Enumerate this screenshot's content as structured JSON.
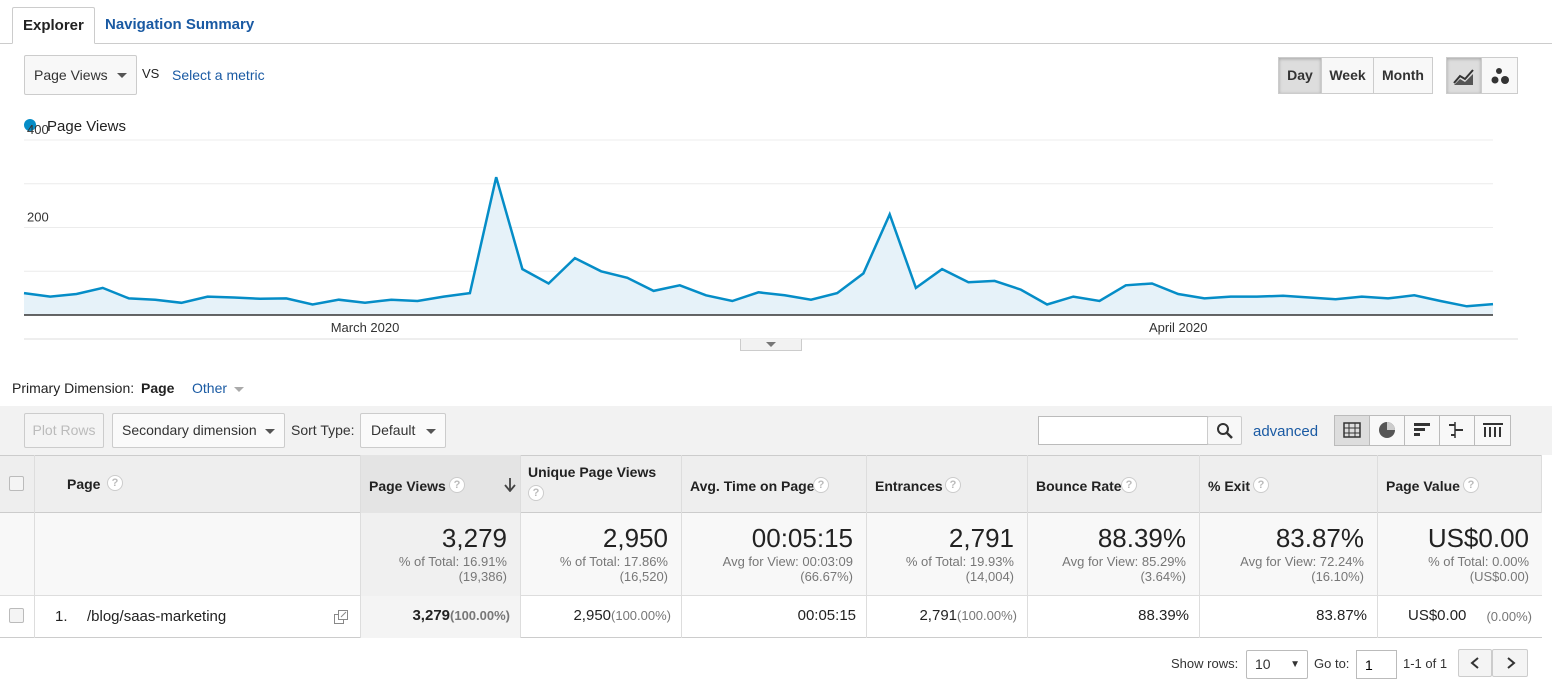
{
  "tabs": [
    {
      "label": "Explorer"
    },
    {
      "label": "Navigation Summary"
    }
  ],
  "metric": {
    "selected": "Page Views",
    "vs": "VS",
    "select_link": "Select a metric"
  },
  "period": {
    "day": "Day",
    "week": "Week",
    "month": "Month",
    "selected": "Day"
  },
  "chart_data": {
    "type": "area",
    "legend": "Page Views",
    "series_color": "#058dc7",
    "y_ticks": [
      "400",
      "200"
    ],
    "ylim": [
      0,
      400
    ],
    "x_labels": [
      {
        "label": "March 2020",
        "index": 13
      },
      {
        "label": "April 2020",
        "index": 44
      }
    ],
    "series": [
      {
        "name": "Page Views",
        "values": [
          50,
          42,
          48,
          62,
          38,
          35,
          28,
          42,
          40,
          37,
          38,
          24,
          35,
          28,
          35,
          32,
          42,
          50,
          315,
          105,
          72,
          130,
          100,
          85,
          55,
          68,
          45,
          32,
          52,
          45,
          35,
          50,
          95,
          230,
          62,
          105,
          75,
          78,
          58,
          24,
          42,
          32,
          68,
          72,
          48,
          38,
          42,
          42,
          44,
          40,
          36,
          42,
          38,
          45,
          32,
          20,
          25
        ]
      }
    ]
  },
  "dimension": {
    "label": "Primary Dimension:",
    "selected": "Page",
    "other": "Other"
  },
  "toolbar": {
    "plot_rows": "Plot Rows",
    "secondary": "Secondary dimension",
    "sort_label": "Sort Type:",
    "sort_value": "Default",
    "advanced": "advanced",
    "search_value": ""
  },
  "table": {
    "headers": {
      "page": "Page",
      "page_views": "Page Views",
      "unique": "Unique Page Views",
      "avg_time": "Avg. Time on Page",
      "entrances": "Entrances",
      "bounce": "Bounce Rate",
      "exit": "% Exit",
      "value": "Page Value"
    },
    "totals": {
      "page_views": {
        "big": "3,279",
        "l1": "% of Total: 16.91%",
        "l2": "(19,386)"
      },
      "unique": {
        "big": "2,950",
        "l1": "% of Total: 17.86%",
        "l2": "(16,520)"
      },
      "avg_time": {
        "big": "00:05:15",
        "l1": "Avg for View: 00:03:09",
        "l2": "(66.67%)"
      },
      "entrances": {
        "big": "2,791",
        "l1": "% of Total: 19.93%",
        "l2": "(14,004)"
      },
      "bounce": {
        "big": "88.39%",
        "l1": "Avg for View: 85.29%",
        "l2": "(3.64%)"
      },
      "exit": {
        "big": "83.87%",
        "l1": "Avg for View: 72.24%",
        "l2": "(16.10%)"
      },
      "value": {
        "big": "US$0.00",
        "l1": "% of Total: 0.00%",
        "l2": "(US$0.00)"
      }
    },
    "row": {
      "num": "1.",
      "page": "/blog/saas-marketing",
      "page_views": "3,279",
      "page_views_pct": "(100.00%)",
      "unique": "2,950",
      "unique_pct": "(100.00%)",
      "avg_time": "00:05:15",
      "entrances": "2,791",
      "entrances_pct": "(100.00%)",
      "bounce": "88.39%",
      "exit": "83.87%",
      "value": "US$0.00",
      "value_pct": "(0.00%)"
    }
  },
  "pagination": {
    "show_rows_label": "Show rows:",
    "rows": "10",
    "goto_label": "Go to:",
    "goto_value": "1",
    "range": "1-1 of 1"
  }
}
